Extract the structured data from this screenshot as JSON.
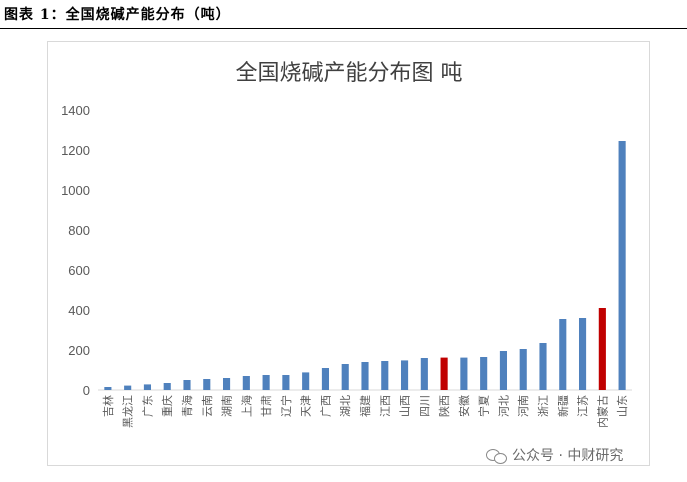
{
  "figure_caption": "图表 1：全国烧碱产能分布（吨）",
  "watermark": "公众号 · 中财研究",
  "colors": {
    "bar": "#4f81bd",
    "highlight": "#c00000",
    "grid": "#d9d9d9",
    "text": "#595959"
  },
  "chart_data": {
    "type": "bar",
    "title": "全国烧碱产能分布图 吨",
    "xlabel": "",
    "ylabel": "",
    "ylim": [
      0,
      1400
    ],
    "yticks": [
      "0",
      "200",
      "400",
      "600",
      "800",
      "1000",
      "1200",
      "1400"
    ],
    "grid": false,
    "categories": [
      "吉林",
      "黑龙江",
      "广东",
      "重庆",
      "青海",
      "云南",
      "湖南",
      "上海",
      "甘肃",
      "辽宁",
      "天津",
      "广西",
      "湖北",
      "福建",
      "江西",
      "山西",
      "四川",
      "陕西",
      "安徽",
      "宁夏",
      "河北",
      "河南",
      "浙江",
      "新疆",
      "江苏",
      "内蒙古",
      "山东"
    ],
    "values": [
      15,
      22,
      28,
      35,
      50,
      55,
      60,
      70,
      75,
      75,
      88,
      110,
      130,
      140,
      145,
      148,
      160,
      162,
      162,
      165,
      195,
      205,
      235,
      355,
      360,
      410,
      1245
    ],
    "highlighted": [
      "陕西",
      "内蒙古"
    ]
  }
}
